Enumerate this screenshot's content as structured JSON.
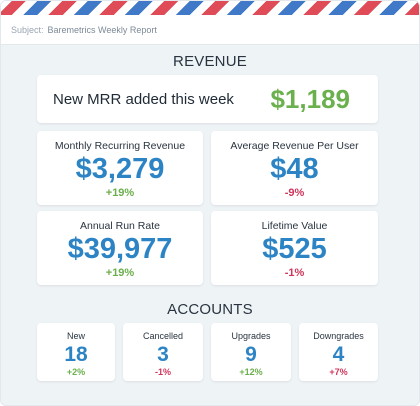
{
  "subject": {
    "label": "Subject:",
    "value": "Baremetrics Weekly Report"
  },
  "revenue": {
    "title": "REVENUE",
    "new_mrr": {
      "label": "New MRR added this week",
      "value": "$1,189"
    },
    "metrics": [
      {
        "label": "Monthly Recurring Revenue",
        "value": "$3,279",
        "change": "+19%"
      },
      {
        "label": "Average Revenue Per User",
        "value": "$48",
        "change": "-9%"
      },
      {
        "label": "Annual Run Rate",
        "value": "$39,977",
        "change": "+19%"
      },
      {
        "label": "Lifetime Value",
        "value": "$525",
        "change": "-1%"
      }
    ]
  },
  "accounts": {
    "title": "ACCOUNTS",
    "items": [
      {
        "label": "New",
        "value": "18",
        "change": "+2%"
      },
      {
        "label": "Cancelled",
        "value": "3",
        "change": "-1%"
      },
      {
        "label": "Upgrades",
        "value": "9",
        "change": "+12%"
      },
      {
        "label": "Downgrades",
        "value": "4",
        "change": "+7%"
      }
    ]
  },
  "colors": {
    "positive": "#6ab04c",
    "negative": "#d0355b",
    "accent": "#2d84c4",
    "stripe_red": "#e04b58",
    "stripe_blue": "#3f79c8"
  }
}
